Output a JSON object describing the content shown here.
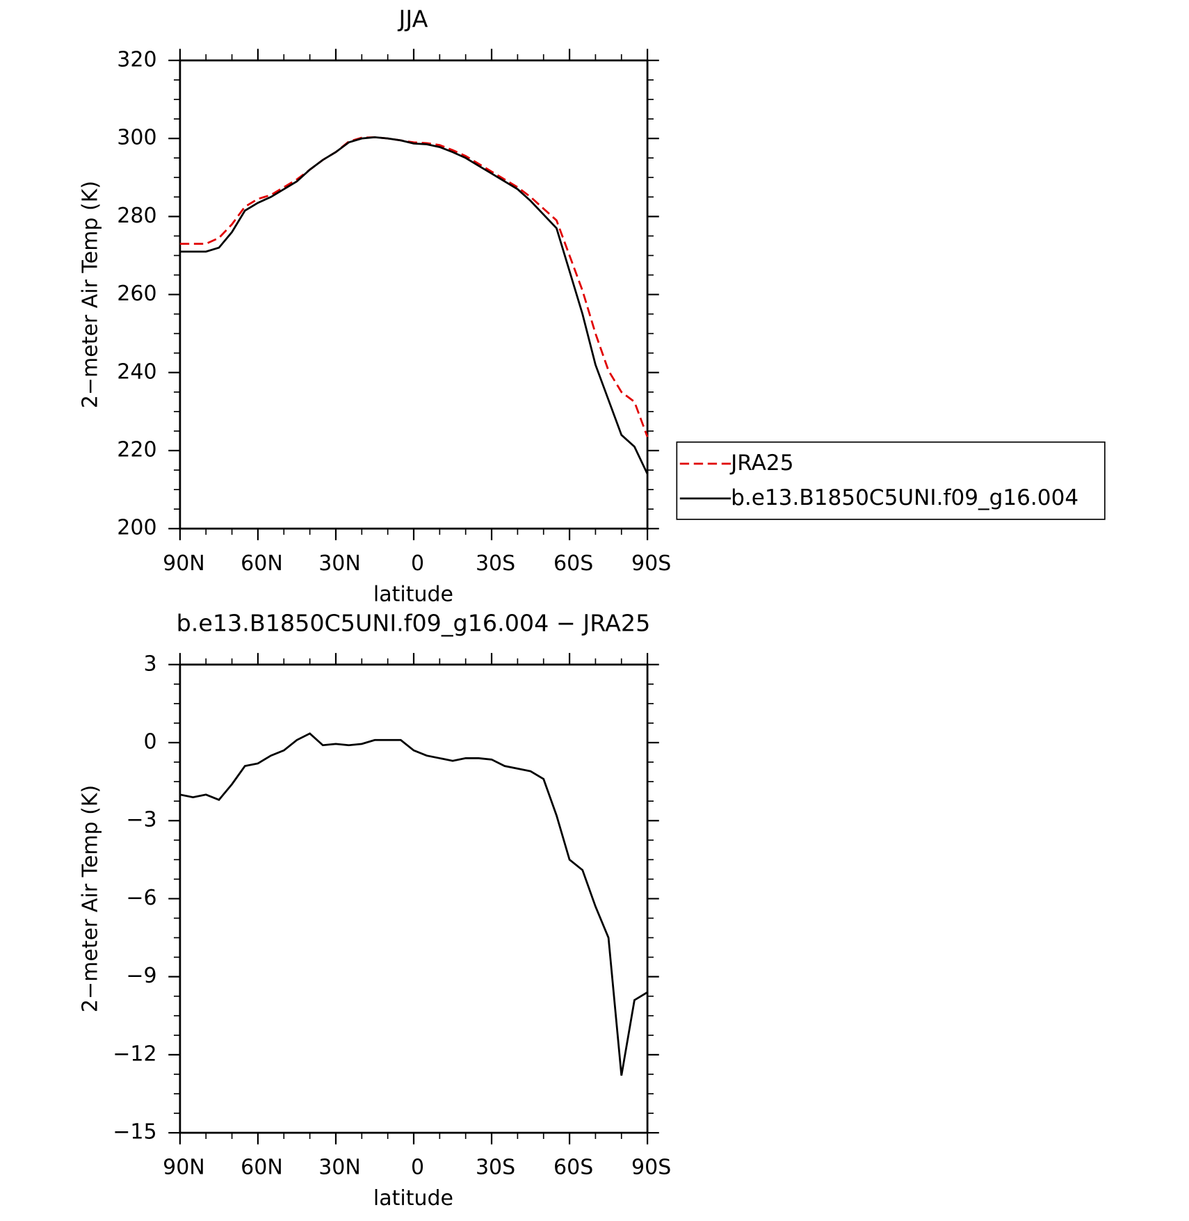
{
  "chart_data": [
    {
      "type": "line",
      "title": "JJA",
      "xlabel": "latitude",
      "ylabel": "2−meter Air Temp (K)",
      "x": [
        90,
        85,
        80,
        75,
        70,
        65,
        60,
        55,
        50,
        45,
        40,
        35,
        30,
        25,
        20,
        15,
        10,
        5,
        0,
        -5,
        -10,
        -15,
        -20,
        -25,
        -30,
        -35,
        -40,
        -45,
        -50,
        -55,
        -60,
        -65,
        -70,
        -75,
        -80,
        -85,
        -90
      ],
      "series": [
        {
          "name": "JRA25",
          "color": "#e00000",
          "dashed": true,
          "values": [
            273,
            273,
            273,
            274.5,
            278,
            282.5,
            284.5,
            285.5,
            287.5,
            289.5,
            292,
            294.5,
            296.5,
            299.2,
            300.2,
            300.3,
            300,
            299.5,
            299,
            298.8,
            298.3,
            297,
            295.5,
            293.5,
            291.5,
            289.5,
            287.5,
            285,
            282,
            279,
            270,
            261,
            250,
            240.5,
            235,
            232.5,
            223.5
          ]
        },
        {
          "name": "b.e13.B1850C5UNI.f09_g16.004",
          "color": "#000000",
          "dashed": false,
          "values": [
            271,
            271,
            271,
            272,
            276,
            281.5,
            283.5,
            285,
            287,
            289,
            292,
            294.5,
            296.5,
            299,
            300,
            300.3,
            300,
            299.5,
            298.7,
            298.5,
            297.8,
            296.5,
            295,
            293,
            291,
            289,
            287,
            284,
            280.5,
            277,
            266,
            255,
            242,
            233,
            224,
            221,
            214
          ]
        }
      ],
      "xlim": [
        90,
        -90
      ],
      "xticks": [
        {
          "value": 90,
          "label": "90N"
        },
        {
          "value": 60,
          "label": "60N"
        },
        {
          "value": 30,
          "label": "30N"
        },
        0,
        {
          "value": -30,
          "label": "30S"
        },
        {
          "value": -60,
          "label": "60S"
        },
        {
          "value": -90,
          "label": "90S"
        }
      ],
      "ylim": [
        200,
        320
      ],
      "yticks": [
        200,
        220,
        240,
        260,
        280,
        300,
        320
      ],
      "legend": "right"
    },
    {
      "type": "line",
      "title": "b.e13.B1850C5UNI.f09_g16.004 − JRA25",
      "xlabel": "latitude",
      "ylabel": "2−meter Air Temp (K)",
      "x": [
        90,
        85,
        80,
        75,
        70,
        65,
        60,
        55,
        50,
        45,
        40,
        35,
        30,
        25,
        20,
        15,
        10,
        5,
        0,
        -5,
        -10,
        -15,
        -20,
        -25,
        -30,
        -35,
        -40,
        -45,
        -50,
        -55,
        -60,
        -65,
        -70,
        -75,
        -80,
        -85,
        -90
      ],
      "series": [
        {
          "color": "#000000",
          "dashed": false,
          "values": [
            -2,
            -2.1,
            -2,
            -2.2,
            -1.6,
            -0.9,
            -0.8,
            -0.5,
            -0.3,
            0.1,
            0.35,
            -0.1,
            -0.05,
            -0.1,
            -0.05,
            0.1,
            0.1,
            0.1,
            -0.3,
            -0.5,
            -0.6,
            -0.7,
            -0.6,
            -0.6,
            -0.65,
            -0.9,
            -1,
            -1.1,
            -1.4,
            -2.8,
            -4.5,
            -4.9,
            -6.3,
            -7.5,
            -12.8,
            -9.9,
            -9.6
          ]
        }
      ],
      "xlim": [
        90,
        -90
      ],
      "xticks": [
        {
          "value": 90,
          "label": "90N"
        },
        {
          "value": 60,
          "label": "60N"
        },
        {
          "value": 30,
          "label": "30N"
        },
        0,
        {
          "value": -30,
          "label": "30S"
        },
        {
          "value": -60,
          "label": "60S"
        },
        {
          "value": -90,
          "label": "90S"
        }
      ],
      "ylim": [
        -15,
        3
      ],
      "yticks": [
        {
          "value": -15,
          "label": "−15"
        },
        {
          "value": -12,
          "label": "−12"
        },
        {
          "value": -9,
          "label": "−9"
        },
        {
          "value": -6,
          "label": "−6"
        },
        {
          "value": -3,
          "label": "−3"
        },
        0,
        3
      ]
    }
  ]
}
